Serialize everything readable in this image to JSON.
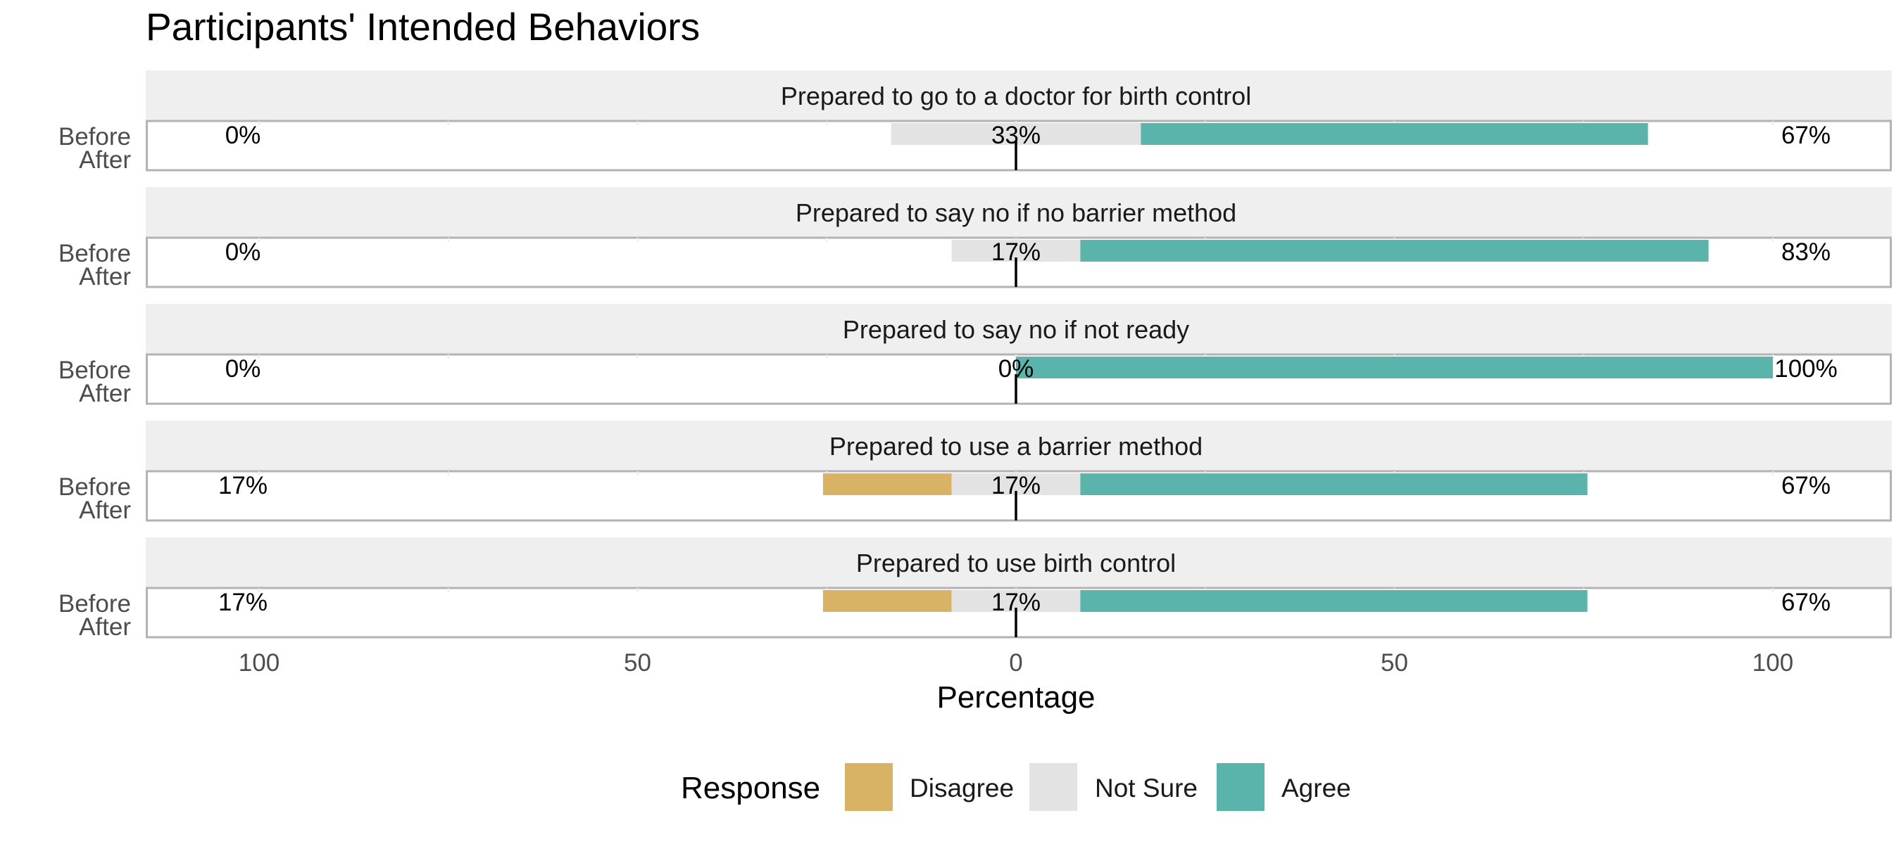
{
  "chart_data": {
    "type": "bar",
    "title": "Participants' Intended Behaviors",
    "xlabel": "Percentage",
    "ylabel": "",
    "xlim": [
      -100,
      100
    ],
    "x_ticks": [
      -100,
      -50,
      0,
      50,
      100
    ],
    "x_tick_labels": [
      "100",
      "50",
      "0",
      "50",
      "100"
    ],
    "row_labels": [
      "Before",
      "After"
    ],
    "legend": {
      "title": "Response",
      "position": "bottom",
      "items": [
        {
          "name": "Disagree",
          "color": "#D9B365"
        },
        {
          "name": "Not Sure",
          "color": "#E3E3E3"
        },
        {
          "name": "Agree",
          "color": "#5AB4AC"
        }
      ]
    },
    "grid": true,
    "panels": [
      {
        "title": "Prepared to go to a doctor for birth control",
        "disagree": 0,
        "not_sure": 33,
        "agree": 67,
        "left_label": "0%",
        "center_label": "33%",
        "right_label": "67%"
      },
      {
        "title": "Prepared to say no if no barrier method",
        "disagree": 0,
        "not_sure": 17,
        "agree": 83,
        "left_label": "0%",
        "center_label": "17%",
        "right_label": "83%"
      },
      {
        "title": "Prepared to say no if not ready",
        "disagree": 0,
        "not_sure": 0,
        "agree": 100,
        "left_label": "0%",
        "center_label": "0%",
        "right_label": "100%"
      },
      {
        "title": "Prepared to use a barrier method",
        "disagree": 17,
        "not_sure": 17,
        "agree": 67,
        "left_label": "17%",
        "center_label": "17%",
        "right_label": "67%"
      },
      {
        "title": "Prepared to use birth control",
        "disagree": 17,
        "not_sure": 17,
        "agree": 67,
        "left_label": "17%",
        "center_label": "17%",
        "right_label": "67%"
      }
    ]
  }
}
